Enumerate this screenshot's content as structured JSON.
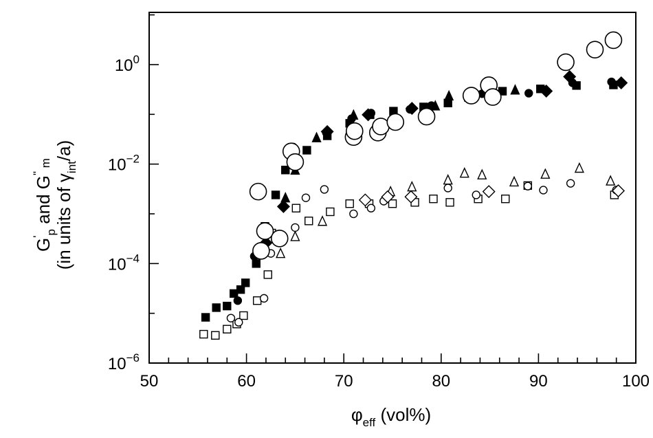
{
  "chart_data": {
    "type": "scatter",
    "title": "",
    "xlabel": {
      "main": "φ",
      "sub": "eff",
      "tail": " (vol%)"
    },
    "ylabel": {
      "line1": {
        "a": "G",
        "a_sup": "'",
        "a_sub": "p",
        "mid": " and G",
        "b_sup": "\"",
        "b_sub": " m"
      },
      "line2": {
        "pre": "(in units of ",
        "gamma": "γ",
        "gamma_sub": "int",
        "post": "/a)"
      }
    },
    "x_scale": "linear",
    "y_scale": "log",
    "xlim": [
      50,
      100
    ],
    "ylim_log10": [
      -6,
      1.05
    ],
    "x_ticks": [
      50,
      60,
      70,
      80,
      90,
      100
    ],
    "x_tick_labels": [
      "50",
      "60",
      "70",
      "80",
      "90",
      "100"
    ],
    "x_minor_step": 2,
    "y_ticks_log10": [
      -6,
      -4,
      -2,
      0
    ],
    "y_tick_labels": [
      {
        "base": "10",
        "exp": "−6"
      },
      {
        "base": "10",
        "exp": "−4"
      },
      {
        "base": "10",
        "exp": "−2"
      },
      {
        "base": "10",
        "exp": "0"
      }
    ],
    "grid": false,
    "legend": "none",
    "series": [
      {
        "marker": "filled-square",
        "points": [
          [
            55.8,
            8.3e-06
          ],
          [
            56.9,
            1.3e-05
          ],
          [
            58.0,
            1.4e-05
          ],
          [
            58.7,
            2.5e-05
          ],
          [
            59.4,
            3e-05
          ],
          [
            59.9,
            4.1e-05
          ],
          [
            61.0,
            0.0001
          ],
          [
            61.9,
            0.00056
          ],
          [
            63.0,
            0.0024
          ],
          [
            64.0,
            0.0076
          ],
          [
            66.2,
            0.019
          ],
          [
            68.3,
            0.037
          ],
          [
            70.6,
            0.066
          ],
          [
            72.7,
            0.098
          ],
          [
            75.1,
            0.116
          ],
          [
            78.2,
            0.141
          ],
          [
            80.7,
            0.169
          ],
          [
            82.8,
            0.219
          ],
          [
            86.3,
            0.292
          ],
          [
            90.2,
            0.325
          ],
          [
            93.9,
            0.38
          ],
          [
            97.7,
            0.39
          ]
        ]
      },
      {
        "marker": "filled-circle",
        "points": [
          [
            59.1,
            1.8e-05
          ],
          [
            60.8,
            0.00014
          ],
          [
            64.8,
            0.022
          ],
          [
            68.2,
            0.043
          ],
          [
            70.8,
            0.082
          ],
          [
            72.8,
            0.106
          ],
          [
            76.8,
            0.126
          ],
          [
            79.0,
            0.15
          ],
          [
            84.2,
            0.26
          ],
          [
            89.0,
            0.266
          ],
          [
            93.5,
            0.43
          ],
          [
            97.5,
            0.45
          ]
        ]
      },
      {
        "marker": "filled-triangle",
        "points": [
          [
            64.0,
            0.0021
          ],
          [
            65.0,
            0.0076
          ],
          [
            67.2,
            0.034
          ],
          [
            71.0,
            0.097
          ],
          [
            79.4,
            0.148
          ],
          [
            80.8,
            0.235
          ],
          [
            87.6,
            0.309
          ]
        ]
      },
      {
        "marker": "filled-diamond",
        "points": [
          [
            63.8,
            0.0014
          ],
          [
            62.0,
            0.00026
          ],
          [
            68.3,
            0.045
          ],
          [
            72.5,
            0.098
          ],
          [
            77.0,
            0.132
          ],
          [
            90.8,
            0.293
          ],
          [
            93.2,
            0.572
          ],
          [
            98.5,
            0.43
          ]
        ]
      },
      {
        "marker": "open-square",
        "points": [
          [
            55.6,
            3.8e-06
          ],
          [
            56.8,
            3.6e-06
          ],
          [
            58.0,
            4.8e-06
          ],
          [
            59.0,
            6.1e-06
          ],
          [
            59.7,
            9e-06
          ],
          [
            61.1,
            1.8e-05
          ],
          [
            62.2,
            6e-05
          ],
          [
            62.6,
            0.00041
          ],
          [
            65.1,
            0.0013
          ],
          [
            66.4,
            0.00072
          ],
          [
            68.6,
            0.0011
          ],
          [
            70.6,
            0.0016
          ],
          [
            72.6,
            0.0016
          ],
          [
            75.0,
            0.0016
          ],
          [
            77.3,
            0.0017
          ],
          [
            79.2,
            0.002
          ],
          [
            80.9,
            0.0017
          ],
          [
            83.8,
            0.002
          ],
          [
            86.6,
            0.002
          ],
          [
            88.9,
            0.0037
          ],
          [
            97.8,
            0.0024
          ]
        ]
      },
      {
        "marker": "open-circle",
        "points": [
          [
            58.4,
            8e-06
          ],
          [
            59.2,
            6.6e-06
          ],
          [
            61.8,
            2e-05
          ],
          [
            62.5,
            0.00016
          ],
          [
            65.0,
            0.00053
          ],
          [
            66.1,
            0.0021
          ],
          [
            68.0,
            0.0031
          ],
          [
            71.0,
            0.001
          ],
          [
            72.8,
            0.0013
          ],
          [
            74.1,
            0.0018
          ],
          [
            80.7,
            0.0033
          ],
          [
            83.6,
            0.0024
          ],
          [
            88.9,
            0.0036
          ],
          [
            90.5,
            0.003
          ],
          [
            93.3,
            0.0041
          ],
          [
            98.0,
            0.003
          ]
        ]
      },
      {
        "marker": "open-triangle",
        "points": [
          [
            63.5,
            0.00016
          ],
          [
            65.0,
            0.00035
          ],
          [
            67.8,
            0.00071
          ],
          [
            74.8,
            0.0028
          ],
          [
            77.0,
            0.0035
          ],
          [
            80.7,
            0.0048
          ],
          [
            82.4,
            0.0066
          ],
          [
            84.2,
            0.0061
          ],
          [
            87.5,
            0.0044
          ],
          [
            90.7,
            0.0063
          ],
          [
            94.2,
            0.0083
          ],
          [
            97.4,
            0.0046
          ]
        ]
      },
      {
        "marker": "open-diamond",
        "points": [
          [
            72.2,
            0.0019
          ],
          [
            74.5,
            0.0022
          ],
          [
            76.9,
            0.0022
          ],
          [
            84.9,
            0.0028
          ],
          [
            98.2,
            0.0029
          ]
        ]
      },
      {
        "marker": "large-open-circle",
        "points": [
          [
            61.2,
            0.0028
          ],
          [
            61.9,
            0.00045
          ],
          [
            61.5,
            0.00018
          ],
          [
            63.4,
            0.00032
          ],
          [
            64.6,
            0.018
          ],
          [
            65.0,
            0.011
          ],
          [
            71.0,
            0.035
          ],
          [
            71.1,
            0.046
          ],
          [
            73.5,
            0.043
          ],
          [
            73.8,
            0.057
          ],
          [
            75.3,
            0.07
          ],
          [
            78.5,
            0.09
          ],
          [
            83.1,
            0.238
          ],
          [
            84.9,
            0.385
          ],
          [
            85.3,
            0.223
          ],
          [
            92.8,
            1.12
          ],
          [
            95.8,
            2.0
          ],
          [
            97.7,
            3.1
          ]
        ]
      }
    ]
  }
}
